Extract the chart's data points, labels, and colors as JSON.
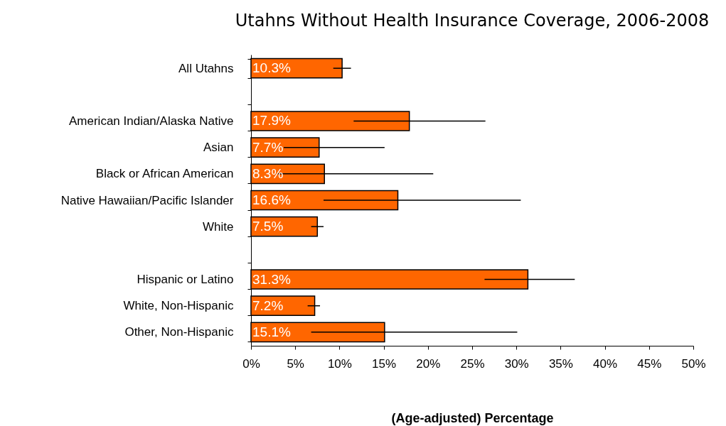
{
  "chart_data": {
    "type": "bar",
    "orientation": "horizontal",
    "title": "Utahns Without Health Insurance Coverage, 2006-2008",
    "xlabel": "(Age-adjusted) Percentage",
    "categories": [
      "All Utahns",
      null,
      "American Indian/Alaska Native",
      "Asian",
      "Black or African American",
      "Native Hawaiian/Pacific Islander",
      "White",
      null,
      "Hispanic or Latino",
      "White, Non-Hispanic",
      "Other, Non-Hispanic"
    ],
    "values": [
      10.3,
      null,
      17.9,
      7.7,
      8.3,
      16.6,
      7.5,
      null,
      31.3,
      7.2,
      15.1
    ],
    "value_labels": [
      "10.3%",
      null,
      "17.9%",
      "7.7%",
      "8.3%",
      "16.6%",
      "7.5%",
      null,
      "31.3%",
      "7.2%",
      "15.1%"
    ],
    "errors": [
      [
        9.3,
        11.3
      ],
      null,
      [
        11.6,
        26.5
      ],
      [
        3.7,
        15.1
      ],
      [
        3.0,
        20.6
      ],
      [
        8.2,
        30.5
      ],
      [
        6.8,
        8.2
      ],
      null,
      [
        26.4,
        36.6
      ],
      [
        6.4,
        7.8
      ],
      [
        6.8,
        30.1
      ]
    ],
    "color": "#ff6600",
    "xlim": [
      0,
      50
    ],
    "xticks": [
      {
        "value": 0,
        "label": "0%"
      },
      {
        "value": 5,
        "label": "5%"
      },
      {
        "value": 10,
        "label": "10%"
      },
      {
        "value": 15,
        "label": "15%"
      },
      {
        "value": 20,
        "label": "20%"
      },
      {
        "value": 25,
        "label": "25%"
      },
      {
        "value": 30,
        "label": "30%"
      },
      {
        "value": 35,
        "label": "35%"
      },
      {
        "value": 40,
        "label": "40%"
      },
      {
        "value": 45,
        "label": "45%"
      },
      {
        "value": 50,
        "label": "50%"
      }
    ],
    "grid": false
  }
}
